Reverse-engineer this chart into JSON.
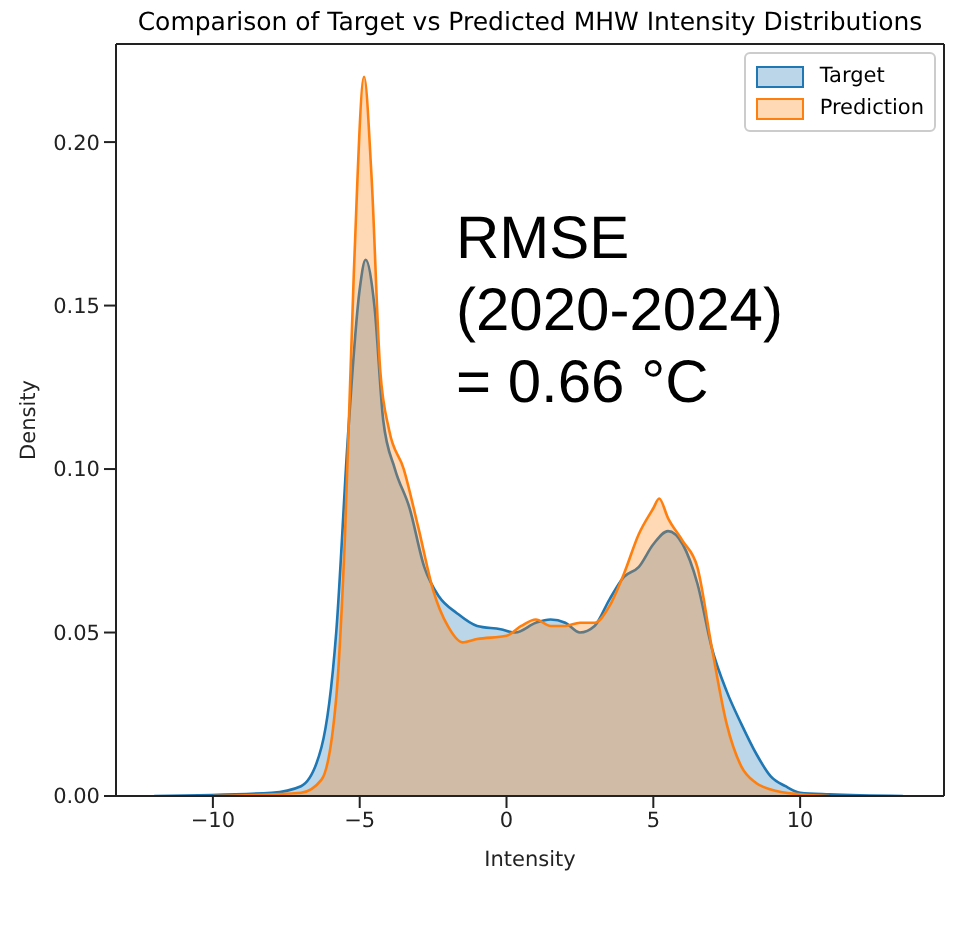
{
  "chart_data": {
    "type": "area",
    "title": "Comparison of Target vs Predicted MHW Intensity Distributions",
    "xlabel": "Intensity",
    "ylabel": "Density",
    "xlim": [
      -13.3,
      14.9
    ],
    "ylim": [
      0,
      0.23
    ],
    "xticks": [
      {
        "value": -10,
        "label": "−10"
      },
      {
        "value": -5,
        "label": "−5"
      },
      0,
      5,
      10
    ],
    "yticks": [
      {
        "value": 0,
        "label": "0.00"
      },
      {
        "value": 0.05,
        "label": "0.05"
      },
      {
        "value": 0.1,
        "label": "0.10"
      },
      {
        "value": 0.15,
        "label": "0.15"
      },
      {
        "value": 0.2,
        "label": "0.20"
      }
    ],
    "grid": false,
    "legend": "top right",
    "annotations": [
      "RMSE\n(2020-2024)\n= 0.66 °C"
    ],
    "series": [
      {
        "name": "Target",
        "color": "#1f77b4",
        "x": [
          -12,
          -8,
          -7,
          -6.3,
          -5.8,
          -5.4,
          -5,
          -4.8,
          -4.5,
          -4.2,
          -3.8,
          -3.3,
          -2.8,
          -2.3,
          -1.7,
          -1,
          -0.2,
          0.3,
          1,
          1.5,
          2,
          2.5,
          3,
          3.5,
          4,
          4.5,
          5,
          5.5,
          6,
          6.5,
          7,
          7.5,
          8,
          8.5,
          9,
          9.5,
          10,
          11,
          13.5
        ],
        "values": [
          0,
          0.001,
          0.003,
          0.015,
          0.05,
          0.11,
          0.155,
          0.164,
          0.15,
          0.115,
          0.1,
          0.088,
          0.07,
          0.061,
          0.056,
          0.052,
          0.051,
          0.05,
          0.053,
          0.054,
          0.053,
          0.05,
          0.052,
          0.06,
          0.067,
          0.07,
          0.077,
          0.081,
          0.077,
          0.065,
          0.045,
          0.032,
          0.022,
          0.013,
          0.006,
          0.003,
          0.001,
          0.0005,
          0
        ]
      },
      {
        "name": "Prediction",
        "color": "#ff7f0e",
        "x": [
          -10,
          -7,
          -6.3,
          -5.8,
          -5.5,
          -5.2,
          -4.85,
          -4.6,
          -4.3,
          -4,
          -3.5,
          -3,
          -2.5,
          -2,
          -1.5,
          -1,
          0,
          0.5,
          1,
          1.5,
          2,
          2.5,
          3,
          3.5,
          4,
          4.5,
          5,
          5.2,
          5.5,
          6,
          6.5,
          7,
          7.5,
          8,
          8.5,
          9,
          10,
          11
        ],
        "values": [
          0,
          0.001,
          0.005,
          0.03,
          0.08,
          0.16,
          0.22,
          0.19,
          0.13,
          0.112,
          0.1,
          0.082,
          0.063,
          0.052,
          0.047,
          0.048,
          0.049,
          0.052,
          0.054,
          0.052,
          0.052,
          0.053,
          0.053,
          0.058,
          0.068,
          0.08,
          0.088,
          0.091,
          0.085,
          0.078,
          0.07,
          0.045,
          0.022,
          0.009,
          0.004,
          0.002,
          0.0005,
          0
        ]
      }
    ]
  }
}
